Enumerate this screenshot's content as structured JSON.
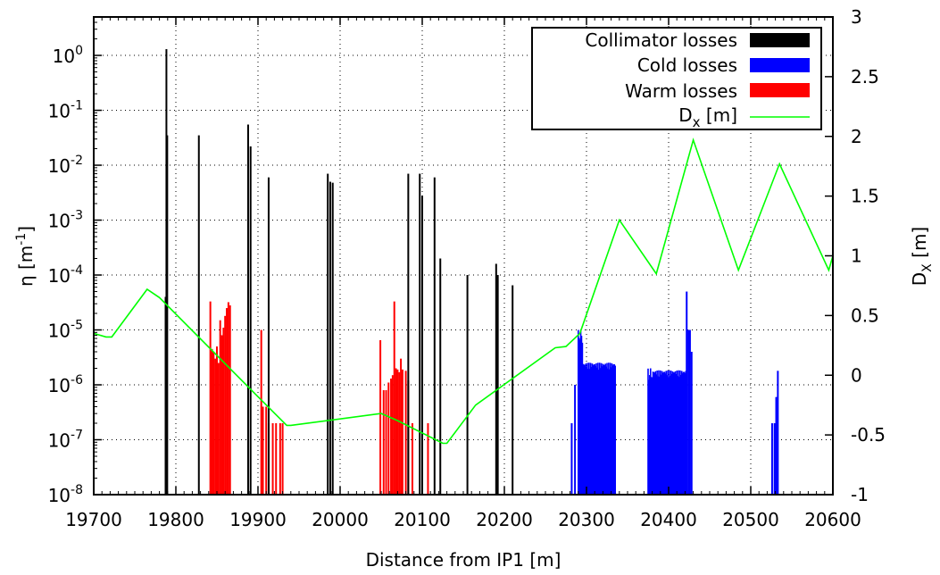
{
  "chart_data": {
    "type": "bar",
    "xlabel": "Distance from IP1 [m]",
    "ylabel": {
      "base": "η [m",
      "sup": "-1",
      "close": "]"
    },
    "y2label": {
      "base": "D",
      "sub": "X",
      "rest": " [m]"
    },
    "xlim": [
      19700,
      20600
    ],
    "ylim_log10": [
      -8,
      0.7
    ],
    "y2lim": [
      -1,
      3
    ],
    "x_ticks": [
      "19700",
      "19800",
      "19900",
      "20000",
      "20100",
      "20200",
      "20300",
      "20400",
      "20500",
      "20600"
    ],
    "y_ticks": [
      {
        "base": "10",
        "exp": "0"
      },
      {
        "base": "10",
        "exp": "-1"
      },
      {
        "base": "10",
        "exp": "-2"
      },
      {
        "base": "10",
        "exp": "-3"
      },
      {
        "base": "10",
        "exp": "-4"
      },
      {
        "base": "10",
        "exp": "-5"
      },
      {
        "base": "10",
        "exp": "-6"
      },
      {
        "base": "10",
        "exp": "-7"
      },
      {
        "base": "10",
        "exp": "-8"
      }
    ],
    "y2_ticks": [
      "3",
      "2.5",
      "2",
      "1.5",
      "1",
      "0.5",
      "0",
      "-0.5",
      "-1"
    ],
    "grid": true,
    "legend_position": "top-right",
    "legend": [
      {
        "label": "Collimator losses",
        "color": "#000000",
        "kind": "box"
      },
      {
        "label": "Cold losses",
        "color": "#0000ff",
        "kind": "box"
      },
      {
        "label": "Warm losses",
        "color": "#ff0000",
        "kind": "box"
      },
      {
        "label": "D",
        "sub": "x",
        "rest": " [m]",
        "color": "#00ff00",
        "kind": "line"
      }
    ],
    "series": [
      {
        "name": "Collimator losses",
        "color": "#000000",
        "points": [
          [
            19787.5,
            4e-05
          ],
          [
            19788.5,
            1.3
          ],
          [
            19789.5,
            0.035
          ],
          [
            19828,
            0.035
          ],
          [
            19888,
            0.055
          ],
          [
            19891,
            0.022
          ],
          [
            19913,
            0.006
          ],
          [
            19985,
            0.007
          ],
          [
            19988,
            0.005
          ],
          [
            19991,
            0.0048
          ],
          [
            20083,
            0.007
          ],
          [
            20097,
            0.007
          ],
          [
            20100,
            0.0028
          ],
          [
            20115,
            0.006
          ],
          [
            20122,
            0.0002
          ],
          [
            20155,
            0.0001
          ],
          [
            20190,
            0.00016
          ],
          [
            20192,
            0.0001
          ],
          [
            20210,
            6.5e-05
          ]
        ]
      },
      {
        "name": "Warm losses",
        "color": "#ff0000",
        "range": [
          19842,
          19866
        ],
        "values": [
          3.3e-05,
          4.5e-06,
          4e-06,
          3e-06,
          5e-06,
          2.5e-06,
          1.5e-05,
          8e-06,
          1.1e-05,
          1.8e-05,
          2.5e-05,
          3.2e-05,
          2.8e-05
        ],
        "extra": [
          [
            19904,
            1e-05
          ],
          [
            19906,
            4e-07
          ],
          [
            19910,
            4e-07
          ],
          [
            19913,
            2e-07
          ],
          [
            19918,
            2e-07
          ],
          [
            19922,
            2e-07
          ],
          [
            19927,
            2e-07
          ],
          [
            19930,
            2e-07
          ],
          [
            20049,
            6.5e-06
          ],
          [
            20053,
            8e-07
          ],
          [
            20056,
            8e-07
          ],
          [
            20059,
            1.1e-06
          ],
          [
            20062,
            1.3e-06
          ],
          [
            20064,
            1.5e-06
          ],
          [
            20066,
            3.3e-05
          ],
          [
            20068,
            2e-06
          ],
          [
            20070,
            1.9e-06
          ],
          [
            20072,
            1.7e-06
          ],
          [
            20074,
            3e-06
          ],
          [
            20076,
            1.9e-06
          ],
          [
            20080,
            1.8e-06
          ],
          [
            20083,
            1.2e-06
          ],
          [
            20088,
            2e-07
          ],
          [
            20107,
            2e-07
          ]
        ]
      },
      {
        "name": "Cold losses",
        "color": "#0000ff",
        "clusters": [
          {
            "range": [
              20290,
              20335
            ],
            "peak": 1e-05,
            "level": 2.2e-06
          },
          {
            "range": [
              20375,
              20421
            ],
            "peak": 2e-06,
            "level": 1.6e-06
          }
        ],
        "extra": [
          [
            20282,
            2e-07
          ],
          [
            20286,
            1e-06
          ],
          [
            20422,
            5e-05
          ],
          [
            20424,
            1e-05
          ],
          [
            20426,
            1e-05
          ],
          [
            20428,
            4e-06
          ],
          [
            20526,
            2e-07
          ],
          [
            20529,
            2e-07
          ],
          [
            20531,
            6e-07
          ],
          [
            20533,
            1.8e-06
          ]
        ]
      }
    ],
    "dx_series": {
      "name": "D_x [m]",
      "color": "#00ff00",
      "x": [
        19700,
        19715,
        19722,
        19765,
        19780,
        19900,
        19935,
        19940,
        20050,
        20070,
        20125,
        20130,
        20165,
        20262,
        20275,
        20292,
        20340,
        20385,
        20430,
        20485,
        20535,
        20595,
        20600
      ],
      "y": [
        0.35,
        0.32,
        0.32,
        0.72,
        0.65,
        -0.18,
        -0.42,
        -0.42,
        -0.32,
        -0.38,
        -0.57,
        -0.57,
        -0.25,
        0.23,
        0.24,
        0.35,
        1.3,
        0.85,
        1.97,
        0.88,
        1.77,
        0.88,
        1.0
      ]
    }
  }
}
